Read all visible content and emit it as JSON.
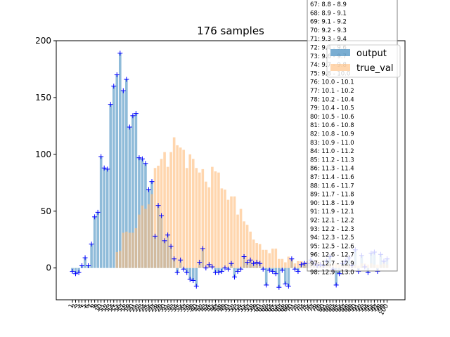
{
  "chart_data": {
    "type": "bar",
    "title": "176 samples",
    "xlabel": "",
    "ylabel": "",
    "ylim": [
      -28,
      200
    ],
    "y_ticks": [
      0,
      50,
      100,
      150,
      200
    ],
    "x_tick_labels": [
      "1",
      "2",
      "3",
      "4",
      "5",
      "6",
      "7",
      "8",
      "9",
      "10",
      "11",
      "12",
      "13",
      "14",
      "15",
      "16",
      "17",
      "18",
      "19",
      "20",
      "21",
      "22",
      "23",
      "24",
      "25",
      "26",
      "27",
      "28",
      "29",
      "30",
      "31",
      "32",
      "33",
      "34",
      "35",
      "36",
      "37",
      "38",
      "39",
      "40",
      "41",
      "42",
      "43",
      "44",
      "45",
      "46",
      "47",
      "48",
      "49",
      "50",
      "51",
      "52",
      "53",
      "54",
      "55",
      "56",
      "57",
      "58",
      "59",
      "60",
      "61",
      "62",
      "63",
      "64",
      "65",
      "66",
      "67",
      "68",
      "69",
      "70",
      "71",
      "72",
      "73",
      "74",
      "75",
      "76",
      "77",
      "78",
      "79",
      "80",
      "81",
      "82",
      "83",
      "84",
      "85",
      "86",
      "87",
      "88",
      "89",
      "90",
      "91",
      "92",
      "93",
      "94",
      "95",
      "96",
      "97",
      "98",
      "99",
      "100"
    ],
    "categories": [
      "1",
      "2",
      "3",
      "4",
      "5",
      "6",
      "7",
      "8",
      "9",
      "10",
      "11",
      "12",
      "13",
      "14",
      "15",
      "16",
      "17",
      "18",
      "19",
      "20",
      "21",
      "22",
      "23",
      "24",
      "25",
      "26",
      "27",
      "28",
      "29",
      "30",
      "31",
      "32",
      "33",
      "34",
      "35",
      "36",
      "37",
      "38",
      "39",
      "40",
      "41",
      "42",
      "43",
      "44",
      "45",
      "46",
      "47",
      "48",
      "49",
      "50",
      "51",
      "52",
      "53",
      "54",
      "55",
      "56",
      "57",
      "58",
      "59",
      "60",
      "61",
      "62",
      "63",
      "64",
      "65",
      "66",
      "67",
      "68",
      "69",
      "70",
      "71",
      "72",
      "73",
      "74",
      "75",
      "76",
      "77",
      "78",
      "79",
      "80",
      "81",
      "82",
      "83",
      "84",
      "85",
      "86",
      "87",
      "88",
      "89",
      "90",
      "91",
      "92",
      "93",
      "94",
      "95",
      "96",
      "97",
      "98",
      "99",
      "100"
    ],
    "series": [
      {
        "name": "output",
        "color": "#1f77b4",
        "values": [
          -3,
          -5,
          -4,
          2,
          9,
          2,
          21,
          45,
          49,
          98,
          88,
          87,
          144,
          160,
          170,
          189,
          156,
          166,
          124,
          134,
          136,
          97,
          96,
          92,
          69,
          76,
          28,
          55,
          46,
          24,
          29,
          19,
          8,
          -4,
          7,
          -1,
          -4,
          -10,
          -11,
          -16,
          5,
          17,
          0,
          3,
          1,
          -4,
          -4,
          -3,
          0,
          -1,
          4,
          -8,
          -3,
          -1,
          10,
          5,
          7,
          4,
          5,
          4,
          -1,
          -15,
          -2,
          -3,
          -5,
          -17,
          -2,
          -14,
          -16,
          8,
          -1,
          -3,
          3,
          4,
          4,
          7,
          4,
          2,
          3,
          2,
          6,
          10,
          -1,
          -15,
          -5,
          4,
          6,
          9,
          2,
          16,
          -3,
          11,
          1,
          -4,
          13,
          14,
          -3,
          12,
          6,
          8
        ]
      },
      {
        "name": "true_val",
        "color": "#ffbb78",
        "values": [
          0,
          0,
          0,
          0,
          0,
          0,
          0,
          0,
          0,
          0,
          0,
          0,
          0,
          0,
          14,
          15,
          31,
          32,
          31,
          31,
          35,
          47,
          55,
          52,
          56,
          65,
          88,
          90,
          96,
          102,
          89,
          102,
          115,
          108,
          106,
          104,
          88,
          100,
          96,
          88,
          84,
          87,
          76,
          71,
          89,
          85,
          84,
          70,
          69,
          60,
          63,
          63,
          47,
          52,
          41,
          38,
          32,
          25,
          22,
          21,
          16,
          16,
          13,
          17,
          17,
          8,
          8,
          5,
          10,
          8,
          4,
          6,
          6,
          5,
          6,
          7,
          5,
          7,
          5,
          3,
          4,
          4,
          3,
          4,
          3,
          2,
          3,
          3,
          2,
          3,
          2,
          4,
          4,
          3,
          4,
          3,
          3,
          3,
          5,
          3
        ]
      }
    ],
    "legend": {
      "placement": "top-right",
      "entries": [
        {
          "label": "output",
          "color": "#1f77b4"
        },
        {
          "label": "true_val",
          "color": "#ffbb78"
        }
      ]
    },
    "annotation_box": {
      "placement": "right",
      "lines": [
        "67: 8.8 - 8.9",
        "68: 8.9 - 9.1",
        "69: 9.1 - 9.2",
        "70: 9.2 - 9.3",
        "71: 9.3 - 9.4",
        "72: 9.4 - 9.6",
        "73: 9.6 - 9.7",
        "74: 9.7 - 9.8",
        "75: 9.8 - 10.0",
        "76: 10.0 - 10.1",
        "77: 10.1 - 10.2",
        "78: 10.2 - 10.4",
        "79: 10.4 - 10.5",
        "80: 10.5 - 10.6",
        "81: 10.6 - 10.8",
        "82: 10.8 - 10.9",
        "83: 10.9 - 11.0",
        "84: 11.0 - 11.2",
        "85: 11.2 - 11.3",
        "86: 11.3 - 11.4",
        "87: 11.4 - 11.6",
        "88: 11.6 - 11.7",
        "89: 11.7 - 11.8",
        "90: 11.8 - 11.9",
        "91: 11.9 - 12.1",
        "92: 12.1 - 12.2",
        "93: 12.2 - 12.3",
        "94: 12.3 - 12.5",
        "95: 12.5 - 12.6",
        "96: 12.6 - 12.7",
        "97: 12.7 - 12.9",
        "98: 12.9 - 13.0"
      ]
    },
    "grid": false
  }
}
